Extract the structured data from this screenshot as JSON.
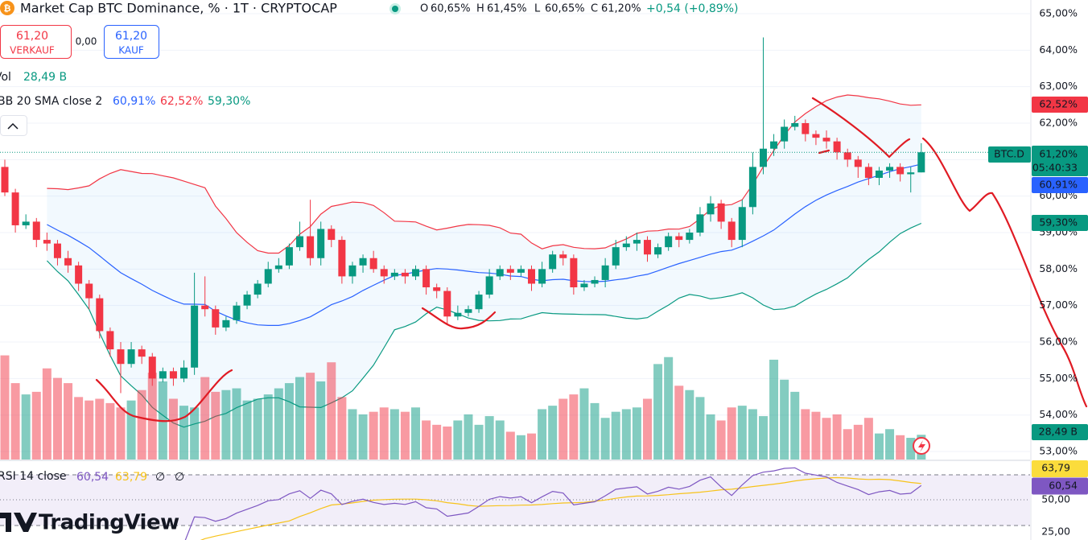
{
  "header": {
    "title": "Market Cap BTC Dominance, % · 1T · CRYPTOCAP",
    "ohlc": [
      {
        "key": "O",
        "value": "60,65%"
      },
      {
        "key": "H",
        "value": "61,45%"
      },
      {
        "key": "L",
        "value": "60,65%"
      },
      {
        "key": "C",
        "value": "61,20%"
      }
    ],
    "change": "+0,54 (+0,89%)"
  },
  "trade": {
    "sell_price": "61,20",
    "sell_label": "VERKAUF",
    "spread": "0,00",
    "buy_price": "61,20",
    "buy_label": "KAUF"
  },
  "indicators": {
    "vol": {
      "label": "Vol",
      "value": "28,49 B"
    },
    "bb": {
      "label": "BB 20 SMA close 2",
      "basis": "60,91%",
      "upper": "62,52%",
      "lower": "59,30%"
    },
    "rsi": {
      "label": "RSI 14 close",
      "value": "60,54",
      "ma": "63,79",
      "extra": [
        "∅",
        "∅"
      ]
    }
  },
  "axis_tags": {
    "symbol": "BTC.D",
    "last": "61,20%",
    "countdown": "05:40:33"
  },
  "brand": "TradingView",
  "chart_data": {
    "type": "candlestick",
    "up_color": "#089981",
    "down_color": "#f23645",
    "ylim": [
      52.78,
      65.375
    ],
    "yticks": [
      {
        "value": 53,
        "label": "53,00%"
      },
      {
        "value": 54,
        "label": "54,00%"
      },
      {
        "value": 55,
        "label": "55,00%"
      },
      {
        "value": 56,
        "label": "56,00%"
      },
      {
        "value": 57,
        "label": "57,00%"
      },
      {
        "value": 58,
        "label": "58,00%"
      },
      {
        "value": 59,
        "label": "59,00%"
      },
      {
        "value": 60,
        "label": "60,00%"
      },
      {
        "value": 61,
        "label": "61,00%"
      },
      {
        "value": 62,
        "label": "62,00%"
      },
      {
        "value": 63,
        "label": "63,00%"
      },
      {
        "value": 64,
        "label": "64,00%"
      },
      {
        "value": 65,
        "label": "65,00%"
      }
    ],
    "grid": true,
    "open": [
      60.8,
      60.1,
      59.2,
      59.3,
      58.8,
      58.7,
      58.3,
      58.1,
      57.6,
      57.2,
      56.3,
      55.8,
      55.4,
      55.8,
      55.6,
      55.0,
      55.2,
      55.0,
      55.3,
      57.0,
      56.9,
      56.4,
      56.6,
      57.0,
      57.3,
      57.6,
      58.0,
      58.1,
      58.6,
      58.9,
      58.3,
      59.1,
      58.8,
      57.8,
      58.1,
      58.3,
      58.0,
      57.8,
      57.9,
      57.8,
      58.0,
      57.5,
      57.4,
      56.7,
      56.8,
      56.9,
      57.3,
      57.8,
      58.0,
      57.9,
      58.0,
      57.6,
      58.0,
      58.4,
      58.3,
      57.5,
      57.6,
      57.7,
      58.1,
      58.6,
      58.7,
      58.8,
      58.4,
      58.6,
      58.9,
      58.8,
      59.0,
      59.5,
      59.8,
      59.3,
      58.8,
      59.7,
      60.8,
      61.3,
      61.5,
      61.9,
      62.0,
      61.7,
      61.6,
      61.5,
      61.2,
      61.0,
      60.8,
      60.5,
      60.7,
      60.8,
      60.6,
      60.65
    ],
    "high": [
      61.0,
      60.2,
      59.5,
      59.4,
      59.0,
      58.8,
      58.5,
      58.2,
      57.7,
      57.3,
      56.4,
      56.0,
      56.0,
      55.9,
      55.7,
      55.3,
      55.3,
      55.5,
      57.9,
      57.8,
      57.0,
      56.7,
      57.1,
      57.4,
      57.7,
      58.2,
      58.3,
      58.7,
      59.3,
      59.9,
      59.3,
      59.2,
      58.9,
      58.2,
      58.4,
      58.5,
      58.1,
      58.0,
      58.0,
      58.1,
      58.1,
      57.6,
      57.5,
      57.0,
      57.0,
      57.4,
      58.0,
      58.1,
      58.1,
      58.1,
      58.1,
      58.2,
      58.5,
      58.5,
      58.4,
      57.7,
      57.8,
      58.3,
      58.8,
      58.9,
      59.0,
      58.9,
      58.7,
      59.0,
      59.0,
      59.1,
      59.7,
      60.0,
      59.9,
      59.4,
      59.9,
      61.2,
      64.35,
      61.7,
      62.1,
      62.2,
      62.1,
      61.8,
      61.8,
      61.6,
      61.3,
      61.1,
      60.9,
      60.8,
      60.9,
      60.9,
      60.8,
      61.45
    ],
    "low": [
      60.0,
      59.0,
      59.1,
      58.6,
      58.5,
      58.1,
      57.9,
      57.4,
      56.9,
      56.1,
      55.6,
      54.6,
      55.3,
      55.4,
      54.8,
      54.9,
      54.8,
      54.9,
      55.1,
      56.7,
      56.2,
      56.3,
      56.5,
      56.9,
      57.2,
      57.5,
      57.9,
      58.0,
      58.5,
      58.1,
      58.1,
      58.6,
      57.6,
      57.6,
      57.9,
      57.9,
      57.6,
      57.7,
      57.6,
      57.7,
      57.3,
      57.2,
      56.5,
      56.6,
      56.7,
      56.8,
      57.2,
      57.7,
      57.7,
      57.8,
      57.4,
      57.5,
      57.9,
      58.1,
      57.3,
      57.4,
      57.5,
      57.5,
      58.0,
      58.5,
      58.5,
      58.2,
      58.3,
      58.5,
      58.6,
      58.7,
      58.9,
      59.3,
      59.1,
      58.6,
      58.6,
      59.5,
      60.6,
      61.1,
      61.3,
      61.8,
      61.5,
      61.4,
      61.3,
      61.0,
      60.8,
      60.5,
      60.3,
      60.3,
      60.5,
      60.4,
      60.1,
      60.65
    ],
    "close": [
      60.1,
      59.2,
      59.3,
      58.8,
      58.7,
      58.3,
      58.1,
      57.6,
      57.2,
      56.3,
      55.8,
      55.4,
      55.8,
      55.6,
      55.0,
      55.2,
      55.0,
      55.3,
      57.0,
      56.9,
      56.4,
      56.6,
      57.0,
      57.3,
      57.6,
      58.0,
      58.1,
      58.6,
      58.9,
      58.3,
      59.1,
      58.8,
      57.8,
      58.1,
      58.3,
      58.0,
      57.8,
      57.9,
      57.8,
      58.0,
      57.5,
      57.4,
      56.7,
      56.8,
      56.9,
      57.3,
      57.8,
      58.0,
      57.9,
      58.0,
      57.6,
      58.0,
      58.4,
      58.3,
      57.5,
      57.6,
      57.7,
      58.1,
      58.6,
      58.7,
      58.8,
      58.4,
      58.6,
      58.9,
      58.8,
      59.0,
      59.5,
      59.8,
      59.3,
      58.8,
      59.7,
      60.8,
      61.3,
      61.5,
      61.9,
      62.0,
      61.7,
      61.6,
      61.5,
      61.2,
      61.0,
      60.8,
      60.5,
      60.7,
      60.8,
      60.6,
      60.65,
      61.2
    ],
    "volume": [
      120,
      88,
      75,
      78,
      105,
      94,
      88,
      72,
      68,
      70,
      65,
      60,
      68,
      80,
      100,
      90,
      70,
      62,
      60,
      95,
      78,
      80,
      82,
      68,
      70,
      75,
      82,
      88,
      95,
      100,
      90,
      112,
      72,
      58,
      52,
      55,
      60,
      58,
      55,
      60,
      45,
      40,
      38,
      45,
      52,
      40,
      50,
      45,
      32,
      28,
      30,
      58,
      62,
      70,
      75,
      82,
      65,
      48,
      55,
      58,
      60,
      70,
      110,
      118,
      85,
      80,
      72,
      52,
      45,
      60,
      62,
      58,
      50,
      115,
      92,
      78,
      58,
      55,
      48,
      52,
      35,
      40,
      48,
      30,
      35,
      28,
      25,
      28.49
    ],
    "volume_ylim": [
      0,
      140
    ],
    "rsi_ylim": [
      18.75,
      78.75
    ],
    "rsi_yticks": [
      {
        "value": 50,
        "label": "50,00"
      },
      {
        "value": 25,
        "label": "25,00"
      }
    ]
  }
}
